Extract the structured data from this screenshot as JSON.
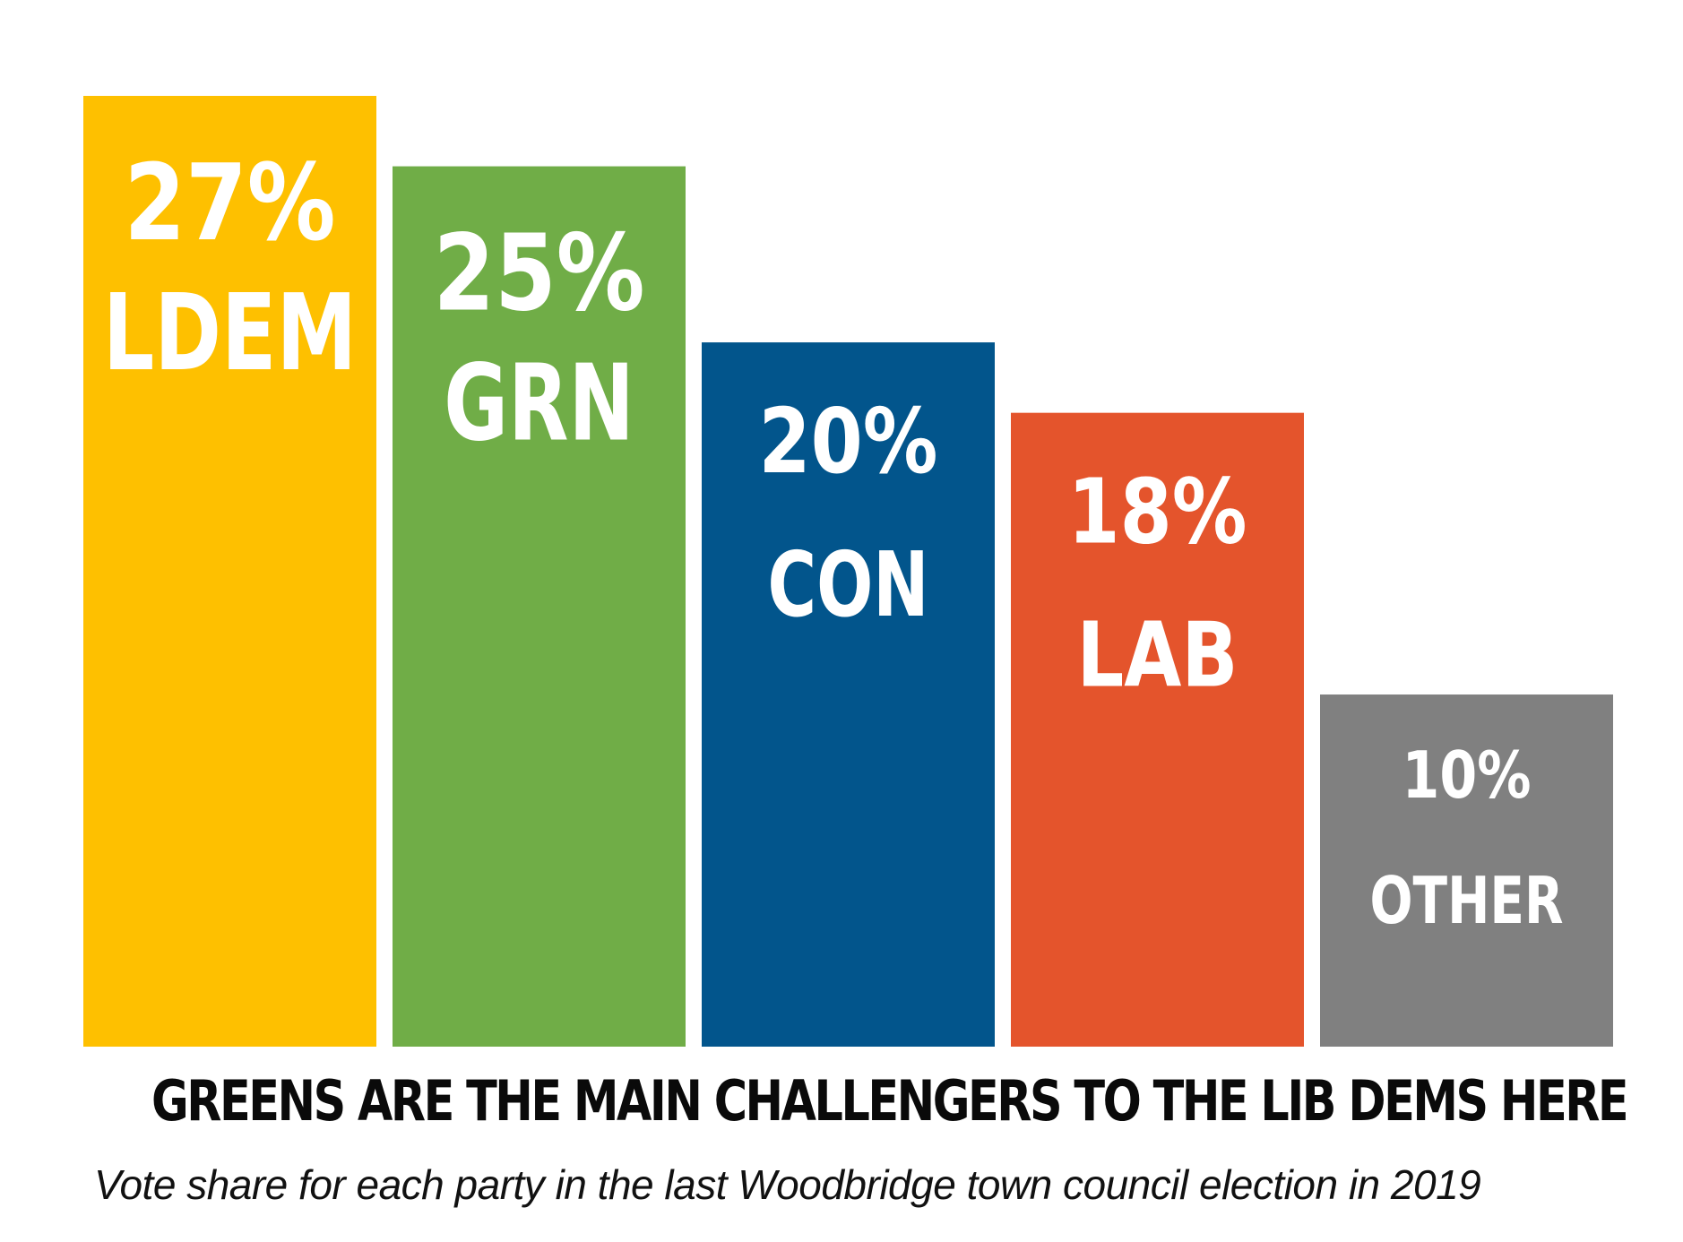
{
  "chart_data": {
    "type": "bar",
    "title": "GREENS ARE THE MAIN CHALLENGERS TO THE LIB DEMS HERE",
    "subtitle": "Vote share for each party in the last Woodbridge town council election in 2019",
    "categories": [
      "LDEM",
      "GRN",
      "CON",
      "LAB",
      "OTHER"
    ],
    "values": [
      27,
      25,
      20,
      18,
      10
    ],
    "value_labels": [
      "27%",
      "25%",
      "20%",
      "18%",
      "10%"
    ],
    "colors": [
      "#FEC000",
      "#70AD47",
      "#02558C",
      "#E4542C",
      "#808080"
    ],
    "unit": "%",
    "xlabel": "",
    "ylabel": "",
    "grid": false,
    "legend": "none"
  }
}
